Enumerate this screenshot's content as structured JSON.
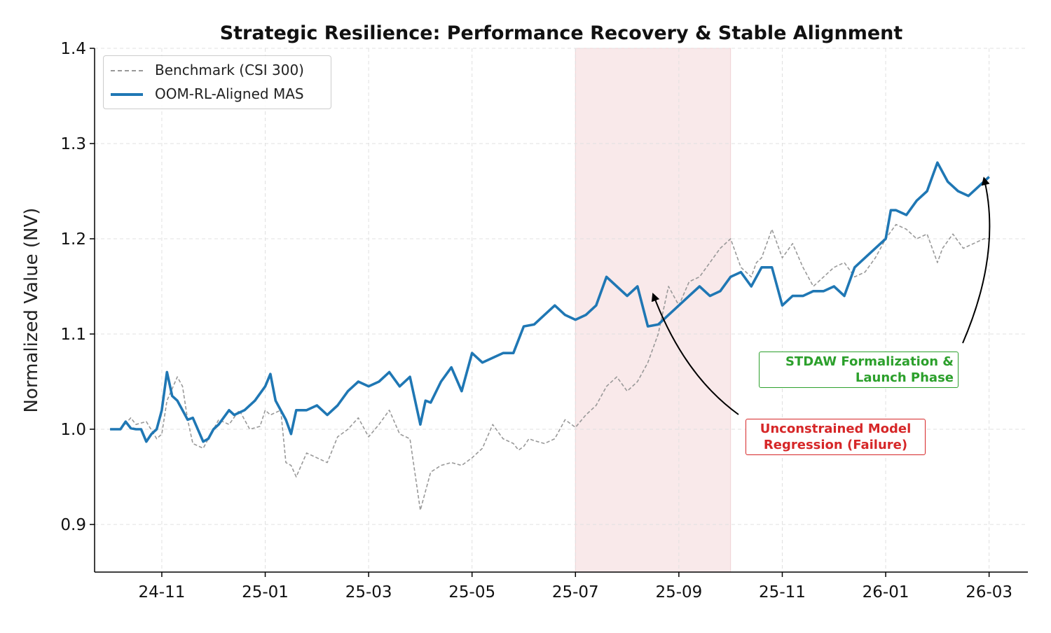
{
  "chart_data": {
    "type": "line",
    "title": "Strategic Resilience: Performance Recovery & Stable Alignment",
    "xlabel": "",
    "ylabel": "Normalized Value (NV)",
    "ylim": [
      0.85,
      1.4
    ],
    "yticks": [
      "0.9",
      "1.0",
      "1.1",
      "1.2",
      "1.3",
      "1.4"
    ],
    "ytick_values": [
      0.9,
      1.0,
      1.1,
      1.2,
      1.3,
      1.4
    ],
    "xtick_labels": [
      "24-11",
      "25-01",
      "25-03",
      "25-05",
      "25-07",
      "25-09",
      "25-11",
      "26-01",
      "26-03"
    ],
    "xtick_months": [
      1,
      3,
      5,
      7,
      9,
      11,
      13,
      15,
      17
    ],
    "xlim_months": [
      -0.3,
      17.75
    ],
    "grid": true,
    "legend_position": "top-left",
    "shaded_region": {
      "start_month": 9.0,
      "end_month": 12.0,
      "color": "#f9e9ea"
    },
    "series": [
      {
        "name": "Benchmark (CSI 300)",
        "style": "dashed",
        "color": "#999999",
        "x": [
          0.0,
          0.2,
          0.4,
          0.5,
          0.7,
          0.9,
          1.0,
          1.1,
          1.3,
          1.4,
          1.5,
          1.6,
          1.8,
          2.0,
          2.1,
          2.3,
          2.5,
          2.7,
          2.9,
          3.0,
          3.1,
          3.3,
          3.4,
          3.5,
          3.6,
          3.8,
          4.0,
          4.2,
          4.4,
          4.6,
          4.8,
          5.0,
          5.2,
          5.4,
          5.6,
          5.8,
          6.0,
          6.2,
          6.4,
          6.6,
          6.8,
          7.0,
          7.2,
          7.4,
          7.6,
          7.8,
          7.9,
          8.0,
          8.1,
          8.2,
          8.4,
          8.6,
          8.8,
          9.0,
          9.2,
          9.4,
          9.6,
          9.8,
          10.0,
          10.2,
          10.4,
          10.6,
          10.8,
          11.0,
          11.2,
          11.4,
          11.6,
          11.8,
          12.0,
          12.2,
          12.4,
          12.5,
          12.6,
          12.8,
          13.0,
          13.2,
          13.4,
          13.6,
          13.8,
          14.0,
          14.2,
          14.4,
          14.6,
          14.8,
          15.0,
          15.2,
          15.4,
          15.6,
          15.8,
          16.0,
          16.1,
          16.3,
          16.5,
          16.7,
          16.9,
          17.0
        ],
        "values": [
          1.0,
          1.0,
          1.012,
          1.005,
          1.008,
          0.99,
          0.995,
          1.03,
          1.055,
          1.045,
          1.01,
          0.985,
          0.98,
          1.0,
          1.01,
          1.005,
          1.02,
          1.0,
          1.003,
          1.02,
          1.015,
          1.02,
          0.965,
          0.962,
          0.95,
          0.975,
          0.97,
          0.965,
          0.992,
          1.0,
          1.012,
          0.992,
          1.005,
          1.02,
          0.995,
          0.99,
          0.915,
          0.955,
          0.962,
          0.965,
          0.962,
          0.97,
          0.98,
          1.005,
          0.99,
          0.985,
          0.978,
          0.982,
          0.99,
          0.988,
          0.985,
          0.99,
          1.01,
          1.002,
          1.015,
          1.025,
          1.045,
          1.055,
          1.04,
          1.05,
          1.07,
          1.1,
          1.15,
          1.13,
          1.155,
          1.16,
          1.175,
          1.19,
          1.2,
          1.17,
          1.16,
          1.175,
          1.18,
          1.21,
          1.18,
          1.195,
          1.17,
          1.15,
          1.16,
          1.17,
          1.175,
          1.16,
          1.165,
          1.18,
          1.2,
          1.215,
          1.21,
          1.2,
          1.205,
          1.175,
          1.19,
          1.205,
          1.19,
          1.195,
          1.2,
          1.2
        ]
      },
      {
        "name": "OOM-RL-Aligned MAS",
        "style": "solid",
        "color": "#1f77b4",
        "x": [
          0.0,
          0.2,
          0.3,
          0.4,
          0.5,
          0.6,
          0.7,
          0.8,
          0.9,
          1.0,
          1.1,
          1.2,
          1.3,
          1.4,
          1.5,
          1.6,
          1.8,
          1.9,
          2.0,
          2.1,
          2.3,
          2.4,
          2.6,
          2.8,
          3.0,
          3.1,
          3.2,
          3.4,
          3.5,
          3.6,
          3.8,
          4.0,
          4.2,
          4.4,
          4.6,
          4.8,
          5.0,
          5.2,
          5.4,
          5.6,
          5.8,
          6.0,
          6.1,
          6.2,
          6.4,
          6.6,
          6.8,
          7.0,
          7.2,
          7.4,
          7.6,
          7.8,
          8.0,
          8.2,
          8.4,
          8.6,
          8.8,
          9.0,
          9.2,
          9.4,
          9.6,
          9.8,
          10.0,
          10.2,
          10.4,
          10.6,
          10.8,
          11.0,
          11.2,
          11.4,
          11.6,
          11.8,
          12.0,
          12.2,
          12.4,
          12.6,
          12.8,
          13.0,
          13.2,
          13.4,
          13.6,
          13.8,
          14.0,
          14.2,
          14.4,
          14.6,
          14.8,
          15.0,
          15.1,
          15.2,
          15.4,
          15.6,
          15.8,
          16.0,
          16.2,
          16.4,
          16.6,
          16.8,
          17.0
        ],
        "values": [
          1.0,
          1.0,
          1.008,
          1.001,
          1.0,
          1.0,
          0.987,
          0.995,
          1.0,
          1.02,
          1.06,
          1.035,
          1.03,
          1.02,
          1.01,
          1.012,
          0.987,
          0.99,
          1.0,
          1.005,
          1.02,
          1.015,
          1.02,
          1.03,
          1.045,
          1.058,
          1.03,
          1.01,
          0.995,
          1.02,
          1.02,
          1.025,
          1.015,
          1.025,
          1.04,
          1.05,
          1.045,
          1.05,
          1.06,
          1.045,
          1.055,
          1.005,
          1.03,
          1.028,
          1.05,
          1.065,
          1.04,
          1.08,
          1.07,
          1.075,
          1.08,
          1.08,
          1.108,
          1.11,
          1.12,
          1.13,
          1.12,
          1.115,
          1.12,
          1.13,
          1.16,
          1.15,
          1.14,
          1.15,
          1.108,
          1.11,
          1.12,
          1.13,
          1.14,
          1.15,
          1.14,
          1.145,
          1.16,
          1.165,
          1.15,
          1.17,
          1.17,
          1.13,
          1.14,
          1.14,
          1.145,
          1.145,
          1.15,
          1.14,
          1.17,
          1.18,
          1.19,
          1.2,
          1.23,
          1.23,
          1.225,
          1.24,
          1.25,
          1.28,
          1.26,
          1.25,
          1.245,
          1.255,
          1.265
        ]
      }
    ],
    "annotations": [
      {
        "text_line1": "Unconstrained Model",
        "text_line2": "Regression (Failure)",
        "color": "#d62728",
        "arrow_target_month": 10.5,
        "arrow_target_value": 1.142
      },
      {
        "text_line1": "STDAW Formalization &",
        "text_line2": "Launch Phase",
        "color": "#2ca02c",
        "arrow_target_month": 16.9,
        "arrow_target_value": 1.28
      }
    ]
  }
}
